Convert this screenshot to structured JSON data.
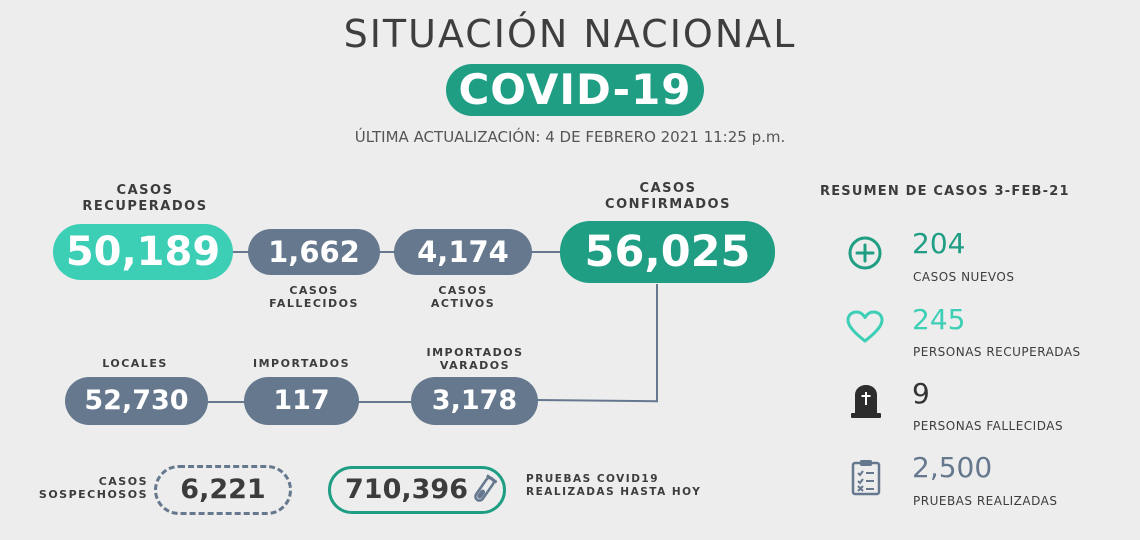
{
  "header": {
    "title": "SITUACIÓN NACIONAL",
    "badge": "COVID-19",
    "updated": "ÚLTIMA ACTUALIZACIÓN: 4 DE FEBRERO 2021 11:25 p.m."
  },
  "stats": {
    "recovered": {
      "label_line1": "CASOS",
      "label_line2": "RECUPERADOS",
      "value": "50,189"
    },
    "deceased": {
      "value": "1,662",
      "label_line1": "CASOS",
      "label_line2": "FALLECIDOS"
    },
    "active": {
      "value": "4,174",
      "label_line1": "CASOS",
      "label_line2": "ACTIVOS"
    },
    "confirmed": {
      "label_line1": "CASOS",
      "label_line2": "CONFIRMADOS",
      "value": "56,025"
    },
    "local": {
      "label": "LOCALES",
      "value": "52,730"
    },
    "imported": {
      "label": "IMPORTADOS",
      "value": "117"
    },
    "stranded": {
      "label_line1": "IMPORTADOS",
      "label_line2": "VARADOS",
      "value": "3,178"
    },
    "suspected": {
      "label_line1": "CASOS",
      "label_line2": "SOSPECHOSOS",
      "value": "6,221"
    },
    "tests": {
      "value": "710,396",
      "label_line1": "PRUEBAS COVID19",
      "label_line2": "REALIZADAS HASTA HOY"
    }
  },
  "summary": {
    "title": "RESUMEN DE CASOS 3-FEB-21",
    "items": [
      {
        "icon": "plus-circle-icon",
        "value": "204",
        "label": "CASOS NUEVOS",
        "color": "#1f9e84"
      },
      {
        "icon": "heart-icon",
        "value": "245",
        "label": "PERSONAS RECUPERADAS",
        "color": "#3ccfb6"
      },
      {
        "icon": "tombstone-icon",
        "value": "9",
        "label": "PERSONAS FALLECIDAS",
        "color": "#333333"
      },
      {
        "icon": "clipboard-checklist-icon",
        "value": "2,500",
        "label": "PRUEBAS REALIZADAS",
        "color": "#65788e"
      }
    ]
  },
  "colors": {
    "teal": "#1f9e84",
    "mint": "#3ccfb6",
    "slate": "#65788e",
    "background": "#ededed"
  }
}
